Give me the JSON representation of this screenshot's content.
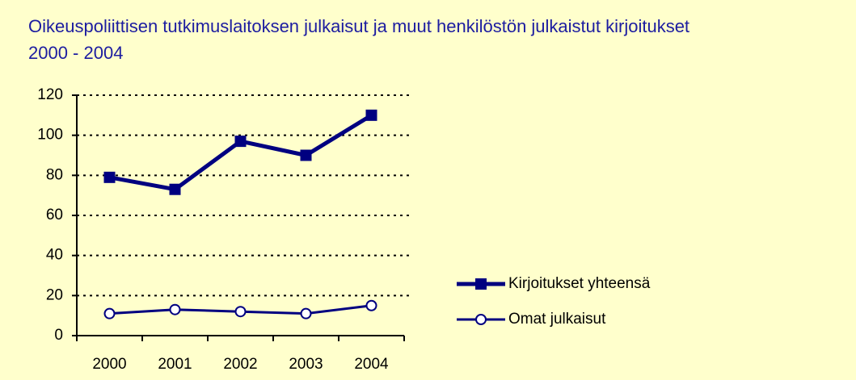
{
  "chart_data": {
    "type": "line",
    "title": "Oikeuspoliittisen tutkimuslaitoksen julkaisut ja muut henkilöstön julkaistut kirjoitukset 2000 - 2004",
    "categories": [
      "2000",
      "2001",
      "2002",
      "2003",
      "2004"
    ],
    "series": [
      {
        "name": "Kirjoitukset yhteensä",
        "color": "#000080",
        "marker": "square",
        "values": [
          79,
          73,
          97,
          90,
          110
        ]
      },
      {
        "name": "Omat julkaisut",
        "color": "#000080",
        "marker": "circle",
        "values": [
          11,
          13,
          12,
          11,
          15
        ]
      }
    ],
    "ylim": [
      0,
      120
    ],
    "yticks": [
      0,
      20,
      40,
      60,
      80,
      100,
      120
    ],
    "grid": true,
    "legend": "right"
  }
}
